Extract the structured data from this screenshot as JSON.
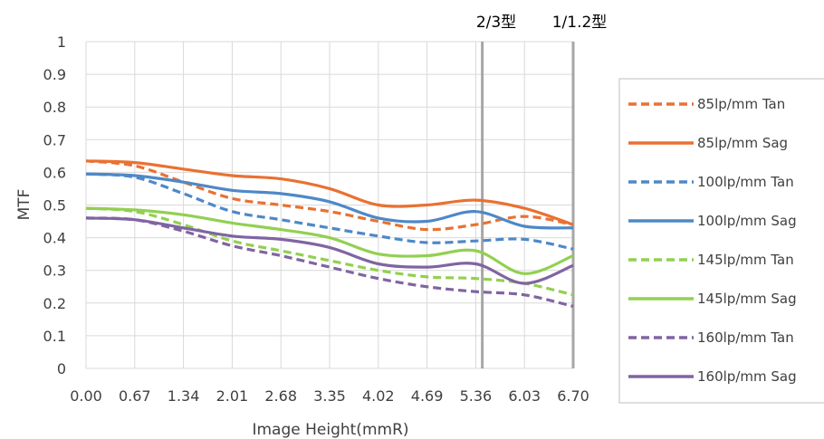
{
  "chart_data": {
    "type": "line",
    "title": "",
    "xlabel": "Image Height(mmR)",
    "ylabel": "MTF",
    "xlim": [
      0,
      6.7
    ],
    "ylim": [
      0,
      1
    ],
    "x_ticks": [
      "0.00",
      "0.67",
      "1.34",
      "2.01",
      "2.68",
      "3.35",
      "4.02",
      "4.69",
      "5.36",
      "6.03",
      "6.70"
    ],
    "y_ticks": [
      "0",
      "0.1",
      "0.2",
      "0.3",
      "0.4",
      "0.5",
      "0.6",
      "0.7",
      "0.8",
      "0.9",
      "1"
    ],
    "grid": true,
    "legend_position": "right",
    "x": [
      0,
      0.67,
      1.34,
      2.01,
      2.68,
      3.35,
      4.02,
      4.69,
      5.36,
      6.03,
      6.7
    ],
    "series": [
      {
        "name": "85lp/mm Tan",
        "color": "#E97132",
        "dash": true,
        "values": [
          0.635,
          0.62,
          0.57,
          0.52,
          0.5,
          0.48,
          0.45,
          0.425,
          0.44,
          0.465,
          0.44
        ]
      },
      {
        "name": "85lp/mm Sag",
        "color": "#E97132",
        "dash": false,
        "values": [
          0.635,
          0.63,
          0.61,
          0.59,
          0.58,
          0.55,
          0.5,
          0.5,
          0.515,
          0.49,
          0.44
        ]
      },
      {
        "name": "100lp/mm Tan",
        "color": "#4E88C7",
        "dash": true,
        "values": [
          0.595,
          0.585,
          0.535,
          0.48,
          0.455,
          0.43,
          0.405,
          0.385,
          0.39,
          0.395,
          0.365
        ]
      },
      {
        "name": "100lp/mm Sag",
        "color": "#4E88C7",
        "dash": false,
        "values": [
          0.595,
          0.59,
          0.57,
          0.545,
          0.535,
          0.51,
          0.46,
          0.45,
          0.48,
          0.435,
          0.43
        ]
      },
      {
        "name": "145lp/mm Tan",
        "color": "#92D050",
        "dash": true,
        "values": [
          0.49,
          0.48,
          0.44,
          0.39,
          0.36,
          0.33,
          0.3,
          0.28,
          0.275,
          0.26,
          0.225
        ]
      },
      {
        "name": "145lp/mm Sag",
        "color": "#92D050",
        "dash": false,
        "values": [
          0.49,
          0.485,
          0.47,
          0.445,
          0.425,
          0.4,
          0.35,
          0.345,
          0.36,
          0.29,
          0.345
        ]
      },
      {
        "name": "160lp/mm Tan",
        "color": "#8064A2",
        "dash": true,
        "values": [
          0.46,
          0.455,
          0.42,
          0.375,
          0.345,
          0.31,
          0.275,
          0.25,
          0.235,
          0.225,
          0.19
        ]
      },
      {
        "name": "160lp/mm Sag",
        "color": "#8064A2",
        "dash": false,
        "values": [
          0.46,
          0.455,
          0.43,
          0.405,
          0.395,
          0.37,
          0.32,
          0.31,
          0.32,
          0.26,
          0.315
        ]
      }
    ],
    "markers": [
      {
        "label": "2/3型",
        "x": 5.45
      },
      {
        "label": "1/1.2型",
        "x": 6.7
      }
    ]
  }
}
